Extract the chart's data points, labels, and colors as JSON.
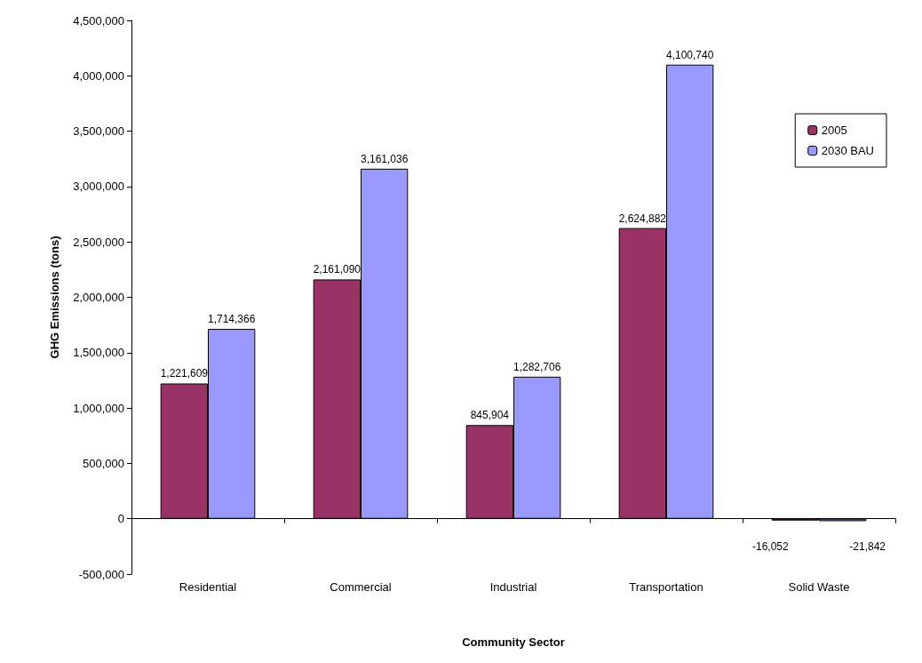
{
  "chart_data": {
    "type": "bar",
    "xlabel": "Community Sector",
    "ylabel": "GHG Emissions (tons)",
    "categories": [
      "Residential",
      "Commercial",
      "Industrial",
      "Transportation",
      "Solid Waste"
    ],
    "series": [
      {
        "name": "2005",
        "color": "#993366",
        "values": [
          1221609,
          2161090,
          845904,
          2624882,
          -16052
        ],
        "value_labels": [
          "1,221,609",
          "2,161,090",
          "845,904",
          "2,624,882",
          "-16,052"
        ]
      },
      {
        "name": "2030 BAU",
        "color": "#9999ff",
        "values": [
          1714366,
          3161036,
          1282706,
          4100740,
          -21842
        ],
        "value_labels": [
          "1,714,366",
          "3,161,036",
          "1,282,706",
          "4,100,740",
          "-21,842"
        ]
      }
    ],
    "ylim": [
      -500000,
      4500000
    ],
    "yticks": [
      {
        "value": -500000,
        "label": "-500,000"
      },
      0,
      {
        "value": 500000,
        "label": "500,000"
      },
      {
        "value": 1000000,
        "label": "1,000,000"
      },
      {
        "value": 1500000,
        "label": "1,500,000"
      },
      {
        "value": 2000000,
        "label": "2,000,000"
      },
      {
        "value": 2500000,
        "label": "2,500,000"
      },
      {
        "value": 3000000,
        "label": "3,000,000"
      },
      {
        "value": 3500000,
        "label": "3,500,000"
      },
      {
        "value": 4000000,
        "label": "4,000,000"
      },
      {
        "value": 4500000,
        "label": "4,500,000"
      }
    ],
    "legend": "top right"
  }
}
